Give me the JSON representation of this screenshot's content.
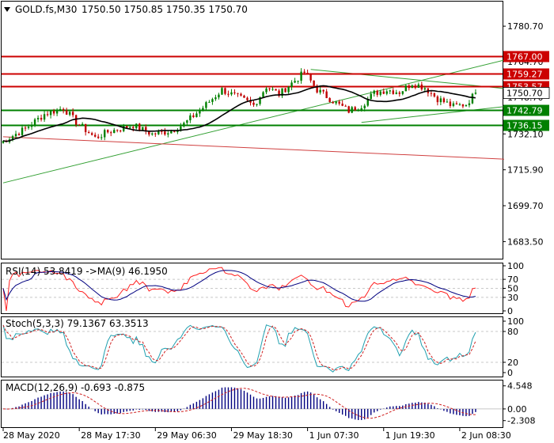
{
  "header": {
    "symbol": "GOLD.fs,M30",
    "ohlc": "1750.50 1750.85 1750.35 1750.70"
  },
  "colors": {
    "bull": "#008000",
    "bear": "#c00000",
    "ma": "#000000",
    "resistance": "#cc0000",
    "support": "#008000",
    "channel": "#33a033",
    "red_trend": "#d04040",
    "rsi": "#000080",
    "rsi_ma": "#ff2020",
    "stoch_main": "#20a0b0",
    "stoch_signal": "#d02020",
    "macd_hist": "#000080",
    "macd_signal": "#d02020",
    "grid": "#c8c8c8"
  },
  "chart_data": [
    {
      "type": "candlestick",
      "panel": "price",
      "ylim": [
        1675.8,
        1791.8
      ],
      "y_ticks": [
        "1780.70",
        "1764.70",
        "1748.70",
        "1732.10",
        "1715.90",
        "1699.70",
        "1683.50"
      ],
      "y_tick_values": [
        1780.7,
        1764.7,
        1748.7,
        1732.1,
        1715.9,
        1699.7,
        1683.5
      ],
      "x_ticks": [
        "28 May 2020",
        "28 May 17:30",
        "29 May 06:30",
        "29 May 18:30",
        "1 Jun 07:30",
        "1 Jun 19:30",
        "2 Jun 08:30"
      ],
      "n_bars": 150,
      "moving_average_color": "black",
      "horizontal_levels": [
        {
          "label": "1767.00",
          "value": 1767.0,
          "kind": "resistance"
        },
        {
          "label": "1759.27",
          "value": 1759.27,
          "kind": "resistance"
        },
        {
          "label": "1753.57",
          "value": 1753.57,
          "kind": "resistance"
        },
        {
          "label": "1742.79",
          "value": 1742.79,
          "kind": "support"
        },
        {
          "label": "1736.15",
          "value": 1736.15,
          "kind": "support"
        }
      ],
      "current_price_label": "1750.70",
      "current_price": 1750.7,
      "trendlines": [
        {
          "kind": "channel",
          "from": [
            0,
            1710.0
          ],
          "to": [
            158,
            1765.4
          ]
        },
        {
          "kind": "channel",
          "from": [
            97,
            1761.2
          ],
          "to": [
            158,
            1752.6
          ]
        },
        {
          "kind": "channel",
          "from": [
            113,
            1737.3
          ],
          "to": [
            158,
            1744.4
          ]
        },
        {
          "kind": "red_trend",
          "from": [
            0,
            1730.8
          ],
          "to": [
            158,
            1720.7
          ]
        }
      ],
      "price_path_anchors": [
        [
          0,
          1728.0
        ],
        [
          8,
          1734.5
        ],
        [
          14,
          1741.0
        ],
        [
          20,
          1743.8
        ],
        [
          24,
          1737.5
        ],
        [
          30,
          1730.3
        ],
        [
          34,
          1733.0
        ],
        [
          42,
          1736.0
        ],
        [
          48,
          1732.0
        ],
        [
          54,
          1733.5
        ],
        [
          58,
          1736.5
        ],
        [
          64,
          1744.0
        ],
        [
          70,
          1752.0
        ],
        [
          76,
          1748.0
        ],
        [
          80,
          1745.0
        ],
        [
          84,
          1753.5
        ],
        [
          88,
          1750.0
        ],
        [
          92,
          1755.0
        ],
        [
          96,
          1759.8
        ],
        [
          100,
          1752.0
        ],
        [
          106,
          1746.0
        ],
        [
          110,
          1742.5
        ],
        [
          114,
          1745.0
        ],
        [
          118,
          1750.5
        ],
        [
          122,
          1752.0
        ],
        [
          126,
          1751.0
        ],
        [
          130,
          1755.0
        ],
        [
          134,
          1753.0
        ],
        [
          138,
          1748.0
        ],
        [
          143,
          1744.5
        ],
        [
          147,
          1745.5
        ],
        [
          150,
          1750.7
        ]
      ]
    },
    {
      "type": "line",
      "panel": "rsi",
      "label": "RSI(14) 53.8419  ->MA(9) 46.1950",
      "ylim": [
        0,
        100
      ],
      "y_ticks": [
        "100",
        "70",
        "50",
        "30",
        "0"
      ],
      "y_tick_values": [
        100,
        70,
        50,
        30,
        0
      ],
      "levels": [
        70,
        50,
        30
      ]
    },
    {
      "type": "line",
      "panel": "stochastic",
      "label": "Stoch(5,3,3) 79.1367 63.3513",
      "ylim": [
        0,
        100
      ],
      "y_ticks": [
        "100",
        "80",
        "20",
        "0"
      ],
      "y_tick_values": [
        100,
        80,
        20,
        0
      ],
      "levels": [
        80,
        20
      ]
    },
    {
      "type": "bar",
      "panel": "macd",
      "label": "MACD(12,26,9) -0.693 -0.875",
      "ylim": [
        -3.6,
        5.6
      ],
      "y_ticks": [
        "4.548",
        "0.00",
        "-2.308"
      ],
      "y_tick_values": [
        4.548,
        0.0,
        -2.308
      ]
    }
  ]
}
